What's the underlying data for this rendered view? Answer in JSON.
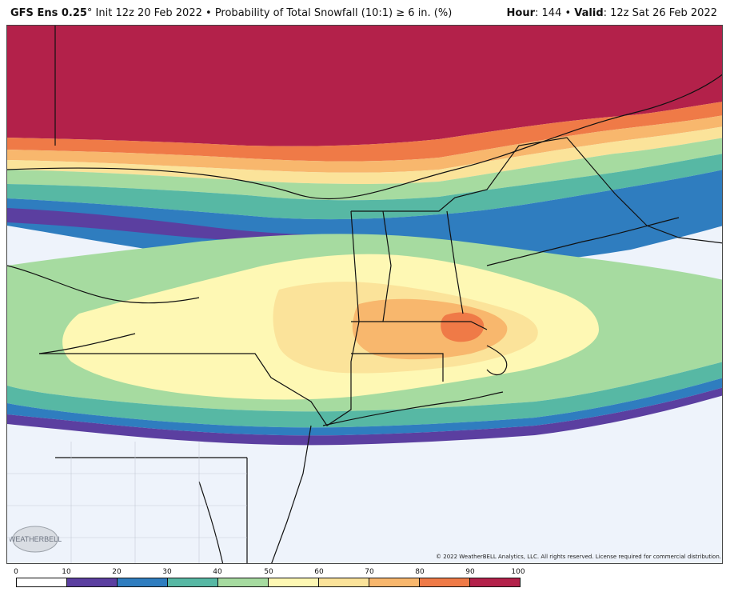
{
  "header": {
    "model": "GFS Ens 0.25",
    "degree": "°",
    "init": " Init 12z 20 Feb 2022",
    "bullet": " • ",
    "product": "Probability of Total Snowfall (10:1) ≥ 6 in. (%)",
    "hour_label": "Hour",
    "hour_value": ": 144 • ",
    "valid_label": "Valid",
    "valid_value": ": 12z Sat 26 Feb 2022"
  },
  "copyright": "© 2022 WeatherBELL Analytics, LLC. All rights reserved. License required for commercial distribution.",
  "logo": {
    "text": "WEATHERBELL"
  },
  "legend": {
    "ticks": [
      "0",
      "10",
      "20",
      "30",
      "40",
      "50",
      "60",
      "70",
      "80",
      "90",
      "100"
    ],
    "colors": [
      "#ffffff",
      "#5b3fa0",
      "#2f7dbf",
      "#57b8a4",
      "#a6dba0",
      "#fef8b4",
      "#fbe39a",
      "#f8b76d",
      "#ef7a47",
      "#b3214a"
    ]
  },
  "colors": {
    "no_snow": "#eef3fb",
    "p10": "#5b3fa0",
    "p20": "#2f7dbf",
    "p30": "#57b8a4",
    "p40": "#a6dba0",
    "p50": "#fef8b4",
    "p60": "#fbe39a",
    "p70": "#f8b76d",
    "p80": "#ef7a47",
    "p90": "#b3214a"
  }
}
